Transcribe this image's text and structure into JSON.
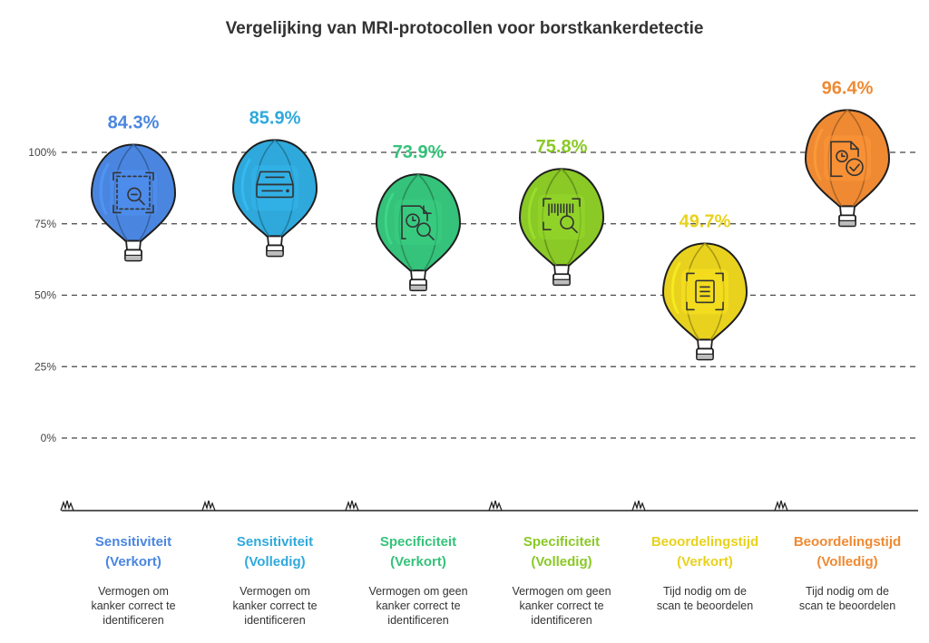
{
  "chart_data": {
    "type": "bar",
    "title": "Vergelijking van MRI-protocollen voor borstkankerdetectie",
    "xlabel": "",
    "ylabel": "",
    "ylim": [
      0,
      100
    ],
    "y_ticks": [
      "0%",
      "25%",
      "50%",
      "75%",
      "100%"
    ],
    "grid": true,
    "categories": [
      "Sensitiviteit (Verkort)",
      "Sensitiviteit (Volledig)",
      "Specificiteit (Verkort)",
      "Specificiteit (Volledig)",
      "Beoordelingstijd (Verkort)",
      "Beoordelingstijd (Volledig)"
    ],
    "values": [
      84.3,
      85.9,
      73.9,
      75.8,
      49.7,
      96.4
    ],
    "items": [
      {
        "label_line1": "Sensitiviteit",
        "label_line2": "(Verkort)",
        "value_label": "84.3%",
        "desc": [
          "Vermogen om",
          "kanker correct te",
          "identificeren"
        ],
        "color": "#4a86e0",
        "icon": "search-frame-icon"
      },
      {
        "label_line1": "Sensitiviteit",
        "label_line2": "(Volledig)",
        "value_label": "85.9%",
        "desc": [
          "Vermogen om",
          "kanker correct te",
          "identificeren"
        ],
        "color": "#2fa9dc",
        "icon": "scanner-icon"
      },
      {
        "label_line1": "Specificiteit",
        "label_line2": "(Verkort)",
        "value_label": "73.9%",
        "desc": [
          "Vermogen om geen",
          "kanker correct te",
          "identificeren"
        ],
        "color": "#35c27a",
        "icon": "document-search-clock-icon"
      },
      {
        "label_line1": "Specificiteit",
        "label_line2": "(Volledig)",
        "value_label": "75.8%",
        "desc": [
          "Vermogen om geen",
          "kanker correct te",
          "identificeren"
        ],
        "color": "#8ac926",
        "icon": "barcode-search-icon"
      },
      {
        "label_line1": "Beoordelingstijd",
        "label_line2": "(Verkort)",
        "value_label": "49.7%",
        "desc": [
          "Tijd nodig om de",
          "scan te beoordelen"
        ],
        "color": "#e8d21d",
        "icon": "document-frame-icon"
      },
      {
        "label_line1": "Beoordelingstijd",
        "label_line2": "(Volledig)",
        "value_label": "96.4%",
        "desc": [
          "Tijd nodig om de",
          "scan te beoordelen"
        ],
        "color": "#ef8a33",
        "icon": "document-clock-check-icon"
      }
    ]
  }
}
